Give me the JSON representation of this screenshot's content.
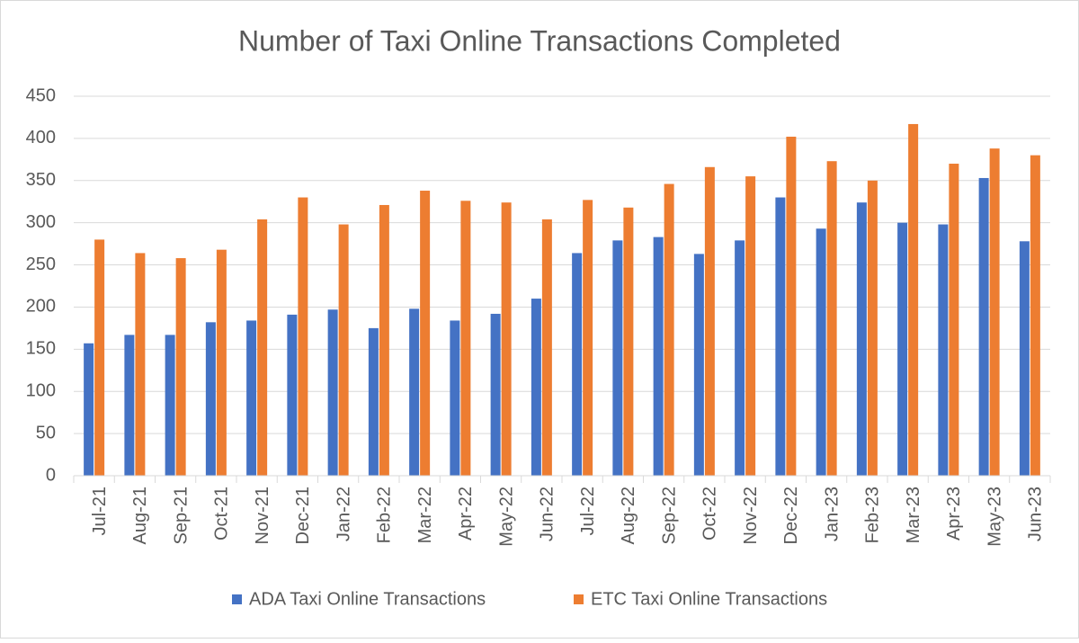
{
  "chart_data": {
    "type": "bar",
    "title": "Number of Taxi Online Transactions Completed",
    "categories": [
      "Jul-21",
      "Aug-21",
      "Sep-21",
      "Oct-21",
      "Nov-21",
      "Dec-21",
      "Jan-22",
      "Feb-22",
      "Mar-22",
      "Apr-22",
      "May-22",
      "Jun-22",
      "Jul-22",
      "Aug-22",
      "Sep-22",
      "Oct-22",
      "Nov-22",
      "Dec-22",
      "Jan-23",
      "Feb-23",
      "Mar-23",
      "Apr-23",
      "May-23",
      "Jun-23"
    ],
    "series": [
      {
        "name": "ADA Taxi Online Transactions",
        "color": "#4472c4",
        "values": [
          157,
          167,
          167,
          182,
          184,
          191,
          197,
          175,
          198,
          184,
          192,
          210,
          264,
          279,
          283,
          263,
          279,
          330,
          293,
          324,
          300,
          298,
          353,
          278
        ]
      },
      {
        "name": "ETC Taxi Online Transactions",
        "color": "#ed7d31",
        "values": [
          280,
          264,
          258,
          268,
          304,
          330,
          298,
          321,
          338,
          326,
          324,
          304,
          327,
          318,
          346,
          366,
          355,
          402,
          373,
          350,
          417,
          370,
          388,
          380
        ]
      }
    ],
    "ylim": [
      0,
      450
    ],
    "yticks": [
      0,
      50,
      100,
      150,
      200,
      250,
      300,
      350,
      400,
      450
    ],
    "grid": true,
    "legend": "bottom"
  }
}
